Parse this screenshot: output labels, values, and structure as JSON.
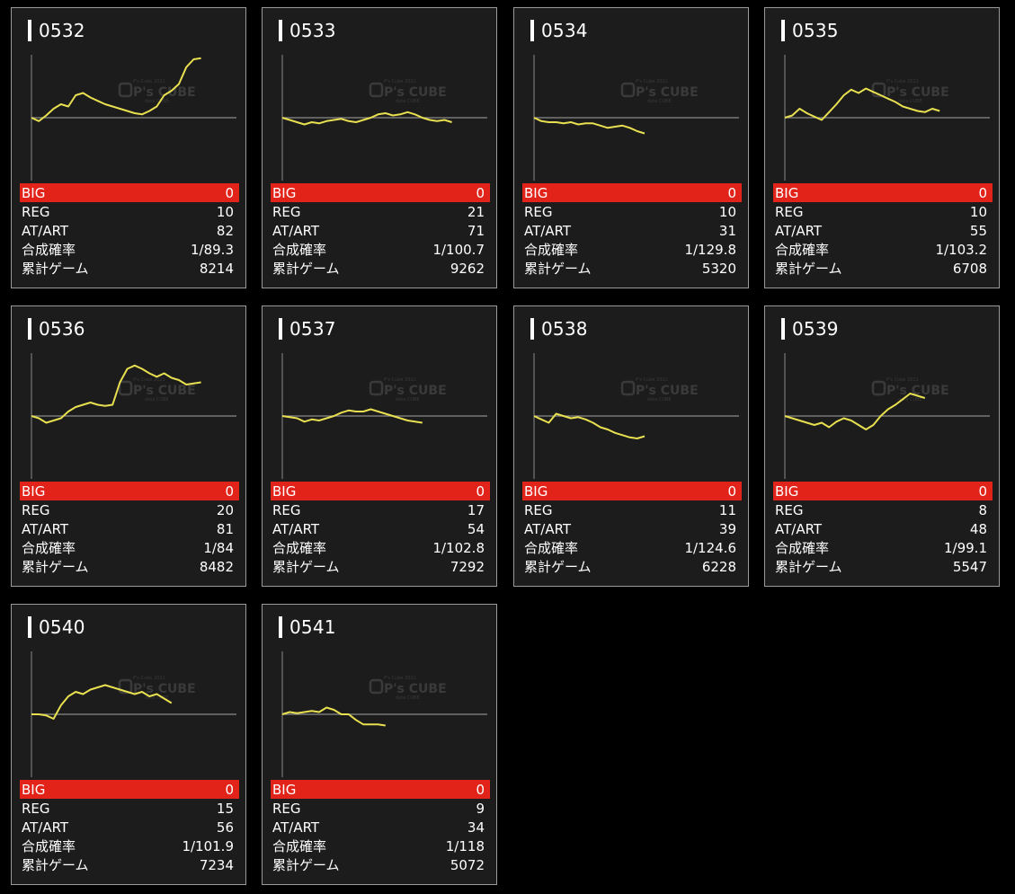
{
  "cards": [
    {
      "id": "0532",
      "big": "0",
      "reg": "10",
      "atart": "82",
      "prob": "1/89.3",
      "games": "8214",
      "graph": [
        0,
        -3,
        2,
        8,
        12,
        10,
        20,
        22,
        18,
        15,
        12,
        10,
        8,
        6,
        4,
        3,
        6,
        10,
        20,
        24,
        30,
        45,
        52,
        53
      ]
    },
    {
      "id": "0533",
      "big": "0",
      "reg": "21",
      "atart": "71",
      "prob": "1/100.7",
      "games": "9262",
      "graph": [
        0,
        -2,
        -4,
        -6,
        -4,
        -5,
        -3,
        -2,
        -1,
        -3,
        -4,
        -2,
        0,
        3,
        4,
        2,
        3,
        5,
        3,
        0,
        -2,
        -3,
        -2,
        -4
      ]
    },
    {
      "id": "0534",
      "big": "0",
      "reg": "10",
      "atart": "31",
      "prob": "1/129.8",
      "games": "5320",
      "graph": [
        0,
        -3,
        -4,
        -4,
        -5,
        -4,
        -6,
        -5,
        -5,
        -7,
        -9,
        -8,
        -7,
        -9,
        -12,
        -14
      ]
    },
    {
      "id": "0535",
      "big": "0",
      "reg": "10",
      "atart": "55",
      "prob": "1/103.2",
      "games": "6708",
      "graph": [
        0,
        2,
        8,
        4,
        1,
        -2,
        5,
        12,
        20,
        25,
        22,
        26,
        23,
        20,
        17,
        14,
        10,
        8,
        6,
        5,
        8,
        6
      ]
    },
    {
      "id": "0536",
      "big": "0",
      "reg": "20",
      "atart": "81",
      "prob": "1/84",
      "games": "8482",
      "graph": [
        0,
        -2,
        -6,
        -4,
        -2,
        4,
        8,
        10,
        12,
        10,
        9,
        10,
        30,
        42,
        45,
        42,
        38,
        35,
        38,
        34,
        32,
        28,
        29,
        30
      ]
    },
    {
      "id": "0537",
      "big": "0",
      "reg": "17",
      "atart": "54",
      "prob": "1/102.8",
      "games": "7292",
      "graph": [
        0,
        -1,
        -2,
        -5,
        -3,
        -4,
        -2,
        0,
        3,
        5,
        4,
        4,
        6,
        4,
        2,
        0,
        -2,
        -4,
        -5,
        -6
      ]
    },
    {
      "id": "0538",
      "big": "0",
      "reg": "11",
      "atart": "39",
      "prob": "1/124.6",
      "games": "6228",
      "graph": [
        0,
        -3,
        -6,
        2,
        0,
        -2,
        -1,
        -3,
        -6,
        -10,
        -12,
        -15,
        -17,
        -19,
        -20,
        -18
      ]
    },
    {
      "id": "0539",
      "big": "0",
      "reg": "8",
      "atart": "48",
      "prob": "1/99.1",
      "games": "5547",
      "graph": [
        0,
        -2,
        -4,
        -6,
        -8,
        -6,
        -10,
        -5,
        -2,
        -4,
        -8,
        -12,
        -8,
        0,
        6,
        10,
        15,
        20,
        18,
        16
      ]
    },
    {
      "id": "0540",
      "big": "0",
      "reg": "15",
      "atart": "56",
      "prob": "1/101.9",
      "games": "7234",
      "graph": [
        0,
        0,
        -1,
        -4,
        8,
        16,
        20,
        18,
        22,
        24,
        26,
        24,
        22,
        20,
        18,
        20,
        16,
        18,
        14,
        10
      ]
    },
    {
      "id": "0541",
      "big": "0",
      "reg": "9",
      "atart": "34",
      "prob": "1/118",
      "games": "5072",
      "graph": [
        0,
        2,
        1,
        2,
        3,
        2,
        6,
        4,
        0,
        0,
        -5,
        -9,
        -9,
        -9,
        -10
      ]
    }
  ],
  "labels": {
    "big": "BIG",
    "reg": "REG",
    "atart": "AT/ART",
    "prob": "合成確率",
    "games": "累計ゲーム"
  },
  "watermark": {
    "text": "P's CUBE",
    "small_top": "P's Cube 2021",
    "small_bottom": "data CUBE"
  },
  "colors": {
    "line": "#e8e050",
    "big_bg": "#e2231a",
    "baseline": "#8a8a8a",
    "card_bg": "#1c1c1c"
  }
}
